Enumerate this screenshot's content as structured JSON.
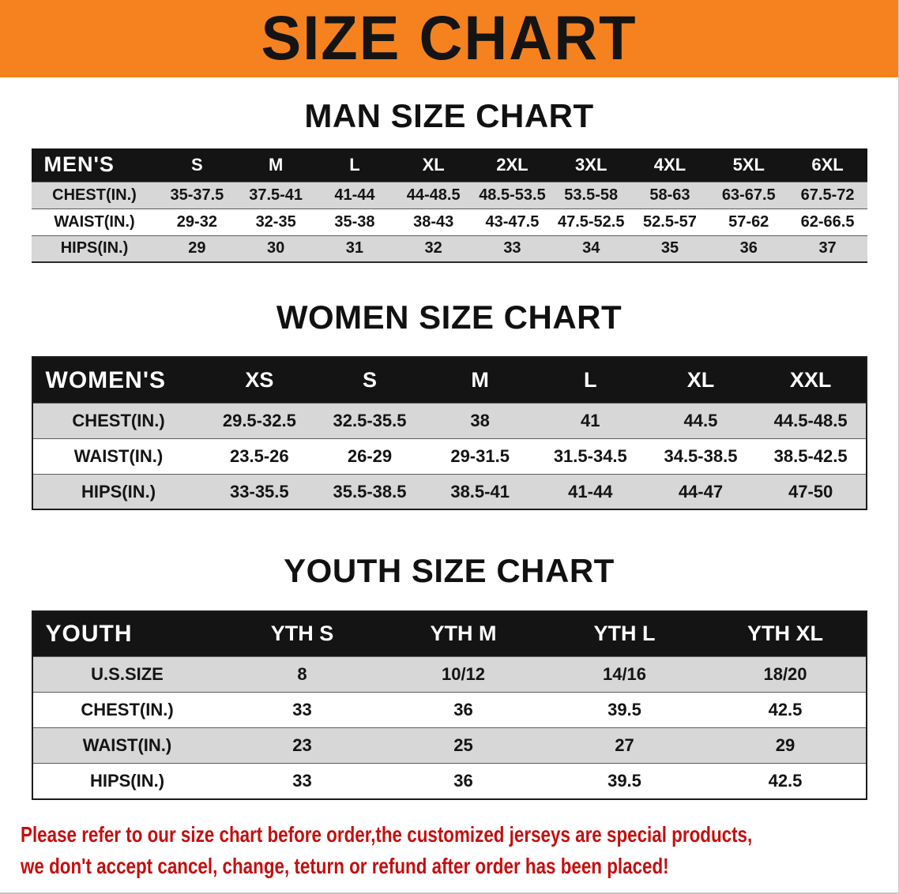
{
  "banner": {
    "title": "SIZE CHART"
  },
  "sections": [
    {
      "id": "men",
      "heading": "MAN SIZE CHART",
      "table": {
        "header": [
          "MEN'S",
          "S",
          "M",
          "L",
          "XL",
          "2XL",
          "3XL",
          "4XL",
          "5XL",
          "6XL"
        ],
        "rows": [
          [
            "CHEST(IN.)",
            "35-37.5",
            "37.5-41",
            "41-44",
            "44-48.5",
            "48.5-53.5",
            "53.5-58",
            "58-63",
            "63-67.5",
            "67.5-72"
          ],
          [
            "WAIST(IN.)",
            "29-32",
            "32-35",
            "35-38",
            "38-43",
            "43-47.5",
            "47.5-52.5",
            "52.5-57",
            "57-62",
            "62-66.5"
          ],
          [
            "HIPS(IN.)",
            "29",
            "30",
            "31",
            "32",
            "33",
            "34",
            "35",
            "36",
            "37"
          ]
        ]
      }
    },
    {
      "id": "women",
      "heading": "WOMEN SIZE CHART",
      "table": {
        "header": [
          "WOMEN'S",
          "XS",
          "S",
          "M",
          "L",
          "XL",
          "XXL"
        ],
        "rows": [
          [
            "CHEST(IN.)",
            "29.5-32.5",
            "32.5-35.5",
            "38",
            "41",
            "44.5",
            "44.5-48.5"
          ],
          [
            "WAIST(IN.)",
            "23.5-26",
            "26-29",
            "29-31.5",
            "31.5-34.5",
            "34.5-38.5",
            "38.5-42.5"
          ],
          [
            "HIPS(IN.)",
            "33-35.5",
            "35.5-38.5",
            "38.5-41",
            "41-44",
            "44-47",
            "47-50"
          ]
        ]
      }
    },
    {
      "id": "youth",
      "heading": "YOUTH SIZE CHART",
      "table": {
        "header": [
          "YOUTH",
          "YTH S",
          "YTH M",
          "YTH L",
          "YTH XL"
        ],
        "rows": [
          [
            "U.S.SIZE",
            "8",
            "10/12",
            "14/16",
            "18/20"
          ],
          [
            "CHEST(IN.)",
            "33",
            "36",
            "39.5",
            "42.5"
          ],
          [
            "WAIST(IN.)",
            "23",
            "25",
            "27",
            "29"
          ],
          [
            "HIPS(IN.)",
            "33",
            "36",
            "39.5",
            "42.5"
          ]
        ]
      }
    }
  ],
  "footer": {
    "line1": "Please refer to our size chart before order,the customized jerseys are special products,",
    "line2": "we don't accept cancel, change, teturn or refund after order has been placed!"
  },
  "colors": {
    "banner_bg": "#f5821f",
    "header_bg": "#141414",
    "row_alt": "#d7d7d7",
    "footer_text": "#c40f0f"
  }
}
